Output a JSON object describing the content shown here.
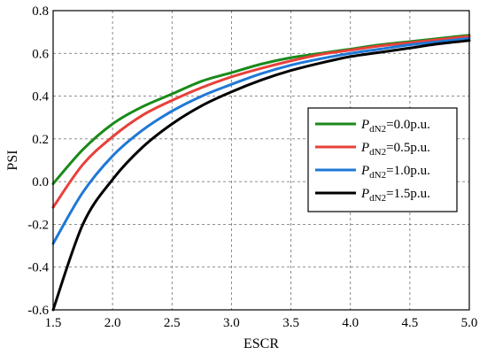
{
  "chart_data": {
    "type": "line",
    "xlabel": "ESCR",
    "ylabel": "PSI",
    "xlim": [
      1.5,
      5.0
    ],
    "ylim": [
      -0.6,
      0.8
    ],
    "x_ticks": [
      1.5,
      2.0,
      2.5,
      3.0,
      3.5,
      4.0,
      4.5,
      5.0
    ],
    "y_ticks": [
      -0.6,
      -0.4,
      -0.2,
      0.0,
      0.2,
      0.4,
      0.6,
      0.8
    ],
    "x_tick_labels": [
      "1.5",
      "2.0",
      "2.5",
      "3.0",
      "3.5",
      "4.0",
      "4.5",
      "5.0"
    ],
    "y_tick_labels": [
      "-0.6",
      "-0.4",
      "-0.2",
      "0.0",
      "0.2",
      "0.4",
      "0.6",
      "0.8"
    ],
    "grid": true,
    "legend_position": "right",
    "x": [
      1.5,
      1.75,
      2.0,
      2.25,
      2.5,
      2.75,
      3.0,
      3.25,
      3.5,
      3.75,
      4.0,
      4.25,
      4.5,
      4.75,
      5.0
    ],
    "series": [
      {
        "legend_symbol": "P",
        "legend_subscript": "dN2",
        "legend_value": "=0.0p.u.",
        "color": "#1a8a1a",
        "values": [
          -0.01,
          0.15,
          0.27,
          0.35,
          0.41,
          0.47,
          0.51,
          0.55,
          0.58,
          0.6,
          0.62,
          0.64,
          0.655,
          0.67,
          0.685
        ]
      },
      {
        "legend_symbol": "P",
        "legend_subscript": "dN2",
        "legend_value": "=0.5p.u.",
        "color": "#e8403a",
        "values": [
          -0.12,
          0.08,
          0.21,
          0.31,
          0.38,
          0.44,
          0.49,
          0.53,
          0.565,
          0.595,
          0.615,
          0.635,
          0.65,
          0.665,
          0.68
        ]
      },
      {
        "legend_symbol": "P",
        "legend_subscript": "dN2",
        "legend_value": "=1.0p.u.",
        "color": "#1f78d6",
        "values": [
          -0.29,
          -0.05,
          0.12,
          0.24,
          0.33,
          0.4,
          0.455,
          0.505,
          0.545,
          0.575,
          0.6,
          0.62,
          0.64,
          0.655,
          0.67
        ]
      },
      {
        "legend_symbol": "P",
        "legend_subscript": "dN2",
        "legend_value": "=1.5p.u.",
        "color": "#000000",
        "values": [
          -0.6,
          -0.2,
          0.01,
          0.16,
          0.27,
          0.355,
          0.42,
          0.475,
          0.52,
          0.555,
          0.585,
          0.605,
          0.625,
          0.645,
          0.66
        ]
      }
    ]
  }
}
